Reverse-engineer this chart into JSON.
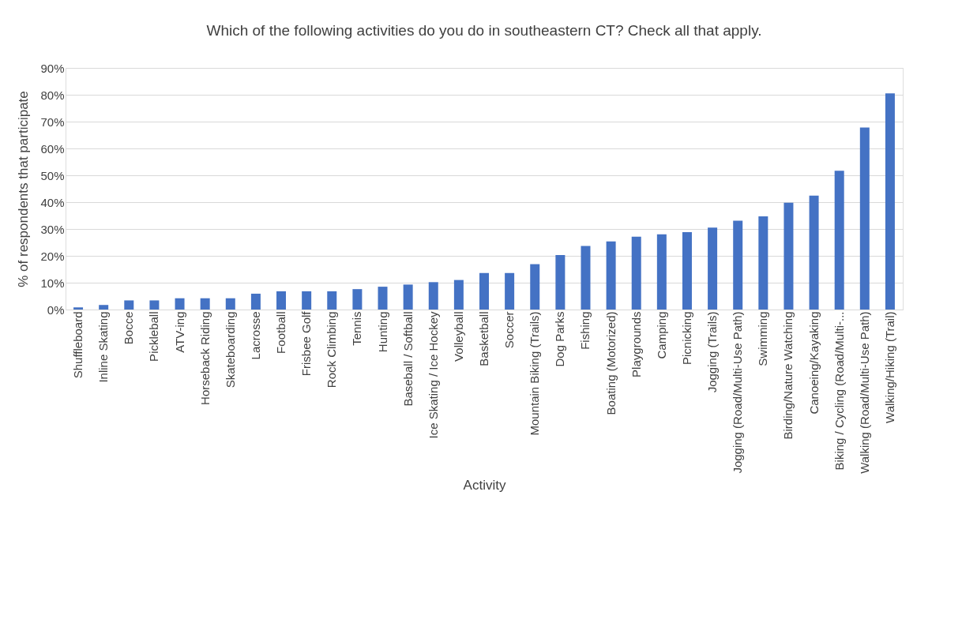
{
  "chart_data": {
    "type": "bar",
    "title": "Which of the following activities do you do in southeastern CT? Check all that apply.",
    "xlabel": "Activity",
    "ylabel": "% of respondents that participate",
    "categories": [
      "Shuffleboard",
      "Inline Skating",
      "Bocce",
      "Pickleball",
      "ATV-ing",
      "Horseback Riding",
      "Skateboarding",
      "Lacrosse",
      "Football",
      "Frisbee Golf",
      "Rock Climbing",
      "Tennis",
      "Hunting",
      "Baseball / Softball",
      "Ice Skating / Ice Hockey",
      "Volleyball",
      "Basketball",
      "Soccer",
      "Mountain Biking (Trails)",
      "Dog Parks",
      "Fishing",
      "Boating (Motorized)",
      "Playgrounds",
      "Camping",
      "Picnicking",
      "Jogging (Trails)",
      "Jogging (Road/Multi-Use Path)",
      "Swimming",
      "Birding/Nature Watching",
      "Canoeing/Kayaking",
      "Biking / Cycling (Road/Multi-...",
      "Walking (Road/Multi-Use Path)",
      "Walking/Hiking (Trail)"
    ],
    "values": [
      0.8,
      1.7,
      3.4,
      3.4,
      4.2,
      4.2,
      4.2,
      5.9,
      6.8,
      6.8,
      6.8,
      7.6,
      8.5,
      9.3,
      10.2,
      11.0,
      13.6,
      13.6,
      16.9,
      20.3,
      23.7,
      25.4,
      27.1,
      28.0,
      28.8,
      30.5,
      33.1,
      34.7,
      39.8,
      42.4,
      51.7,
      67.8,
      80.5
    ],
    "color": "#4472c4",
    "ylim": [
      0,
      90
    ],
    "yticks": [
      {
        "value": 0,
        "label": "0%"
      },
      {
        "value": 10,
        "label": "10%"
      },
      {
        "value": 20,
        "label": "20%"
      },
      {
        "value": 30,
        "label": "30%"
      },
      {
        "value": 40,
        "label": "40%"
      },
      {
        "value": 50,
        "label": "50%"
      },
      {
        "value": 60,
        "label": "60%"
      },
      {
        "value": 70,
        "label": "70%"
      },
      {
        "value": 80,
        "label": "80%"
      },
      {
        "value": 90,
        "label": "90%"
      }
    ],
    "grid": "y"
  }
}
